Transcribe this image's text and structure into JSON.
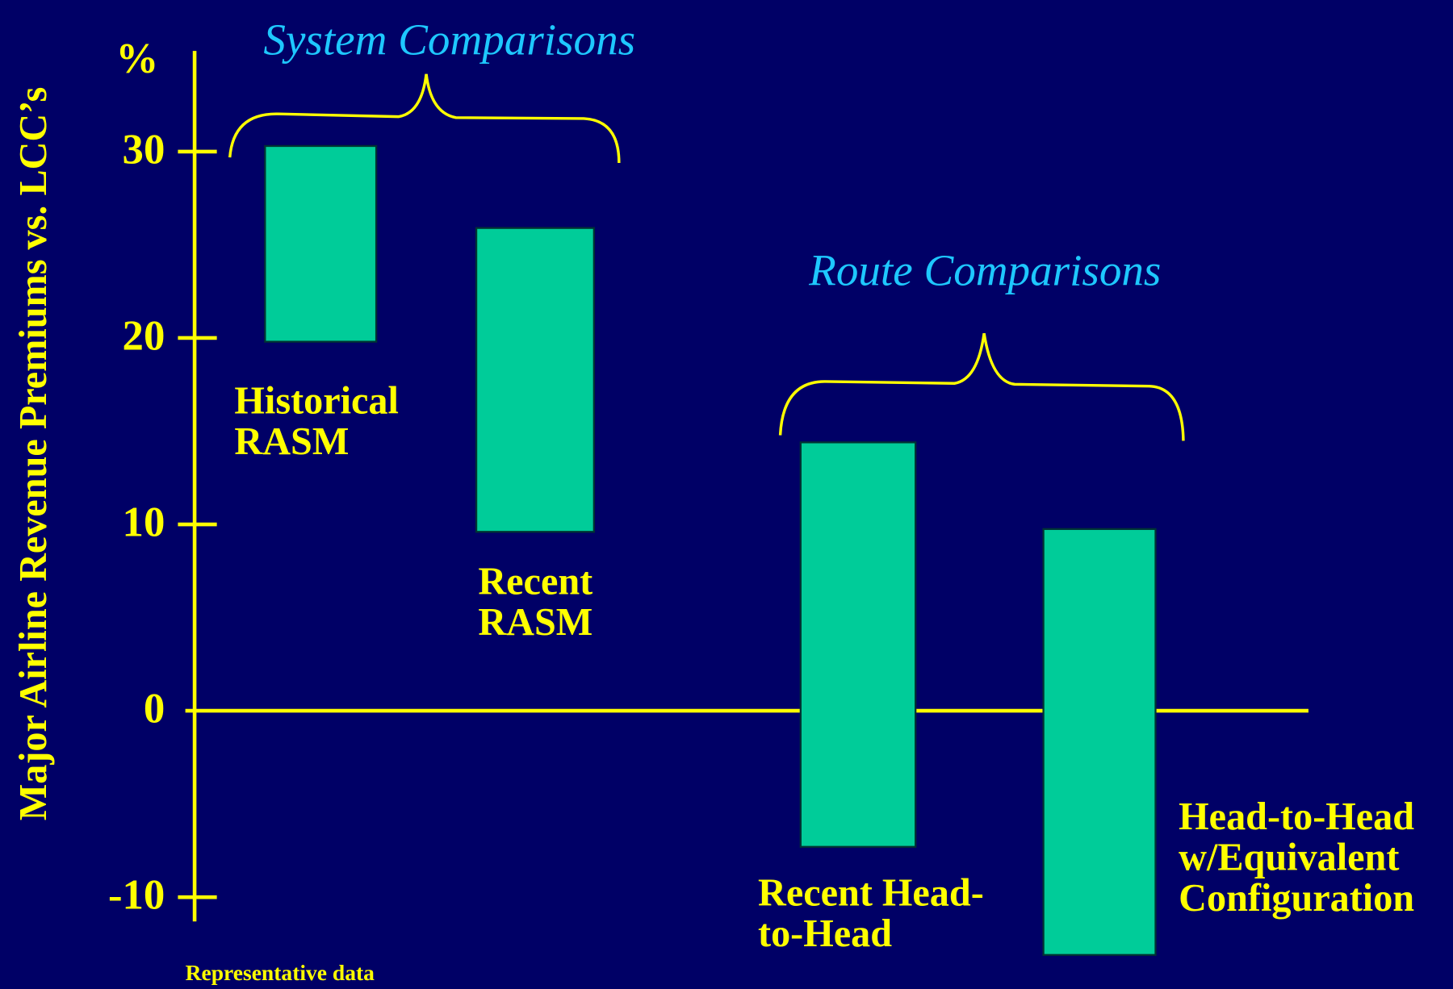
{
  "chart_data": {
    "type": "floating_bar",
    "y_label": "Major Airline Revenue Premiums vs. LCC’s",
    "y_unit": "%",
    "note": "Representative data",
    "annotations": [
      "System Comparisons",
      "Route Comparisons"
    ],
    "categories": [
      [
        "Historical",
        "RASM"
      ],
      [
        "Recent",
        "RASM"
      ],
      [
        "Recent Head-",
        "to-Head"
      ],
      [
        "Head-to-Head",
        "w/Equivalent",
        "Configuration"
      ]
    ],
    "low": [
      19.8,
      9.6,
      -7.3,
      -13.1
    ],
    "high": [
      30.3,
      25.9,
      14.4,
      9.75
    ],
    "color": "#00cc99",
    "ylim": [
      -11.3,
      35.4
    ],
    "yticks": [
      30,
      20,
      10,
      0,
      -10
    ]
  }
}
